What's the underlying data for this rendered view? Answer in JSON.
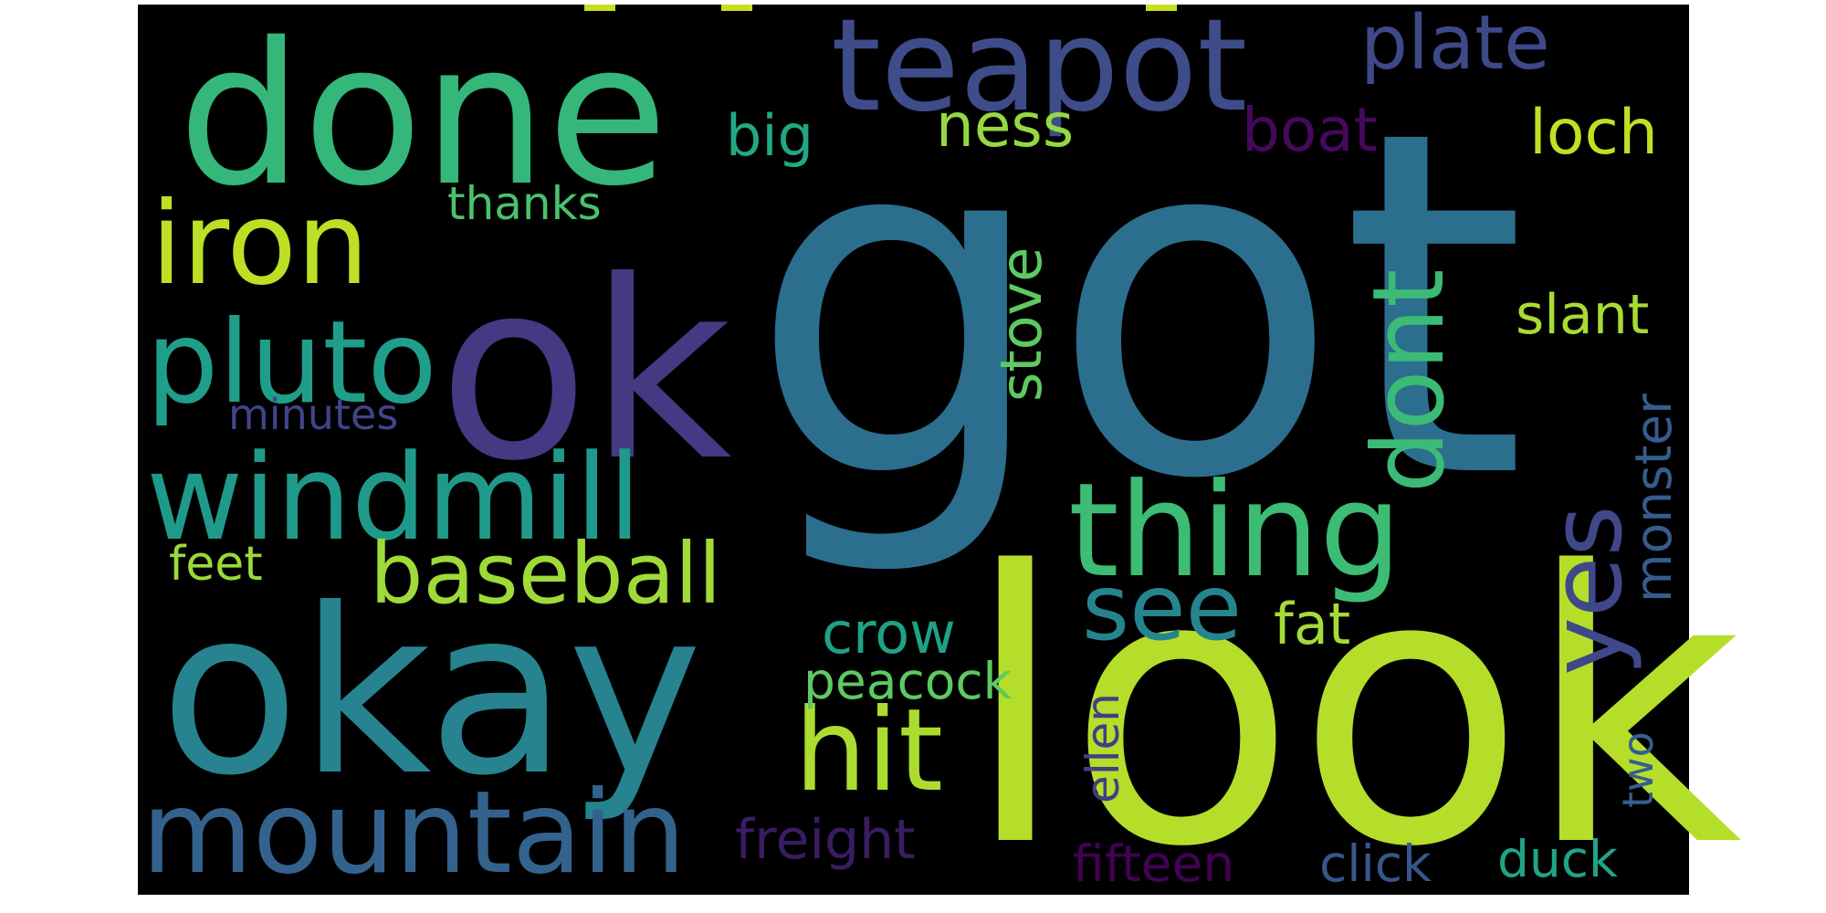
{
  "background": "#000000",
  "words": [
    {
      "text": "got",
      "color": "#2c6e8e"
    },
    {
      "text": "look",
      "color": "#b5de2b"
    },
    {
      "text": "okay",
      "color": "#26838f"
    },
    {
      "text": "ok",
      "color": "#443983"
    },
    {
      "text": "done",
      "color": "#35b779"
    },
    {
      "text": "teapot",
      "color": "#3e4c8a"
    },
    {
      "text": "thing",
      "color": "#3dbc74"
    },
    {
      "text": "windmill",
      "color": "#1f9a8a"
    },
    {
      "text": "iron",
      "color": "#bddf26"
    },
    {
      "text": "pluto",
      "color": "#1f9e89"
    },
    {
      "text": "mountain",
      "color": "#33638d"
    },
    {
      "text": "baseball",
      "color": "#a0da39"
    },
    {
      "text": "hit",
      "color": "#addc30"
    },
    {
      "text": "see",
      "color": "#25858e"
    },
    {
      "text": "dont",
      "color": "#3bbb75"
    },
    {
      "text": "yes",
      "color": "#3f4889"
    },
    {
      "text": "plate",
      "color": "#3e4989"
    },
    {
      "text": "loch",
      "color": "#c2df23"
    },
    {
      "text": "boat",
      "color": "#46085c"
    },
    {
      "text": "ness",
      "color": "#95d840"
    },
    {
      "text": "big",
      "color": "#22a884"
    },
    {
      "text": "thanks",
      "color": "#4ac16d"
    },
    {
      "text": "slant",
      "color": "#a8db34"
    },
    {
      "text": "stove",
      "color": "#5ec962"
    },
    {
      "text": "minutes",
      "color": "#414487"
    },
    {
      "text": "monster",
      "color": "#365c8d"
    },
    {
      "text": "feet",
      "color": "#9bd93c"
    },
    {
      "text": "crow",
      "color": "#1fa187"
    },
    {
      "text": "fat",
      "color": "#a5db36"
    },
    {
      "text": "peacock",
      "color": "#5ec962"
    },
    {
      "text": "ellen",
      "color": "#433e85"
    },
    {
      "text": "two",
      "color": "#355f8d"
    },
    {
      "text": "freight",
      "color": "#3b1c63"
    },
    {
      "text": "fifteen",
      "color": "#440154"
    },
    {
      "text": "click",
      "color": "#39568c"
    },
    {
      "text": "duck",
      "color": "#20a486"
    }
  ]
}
